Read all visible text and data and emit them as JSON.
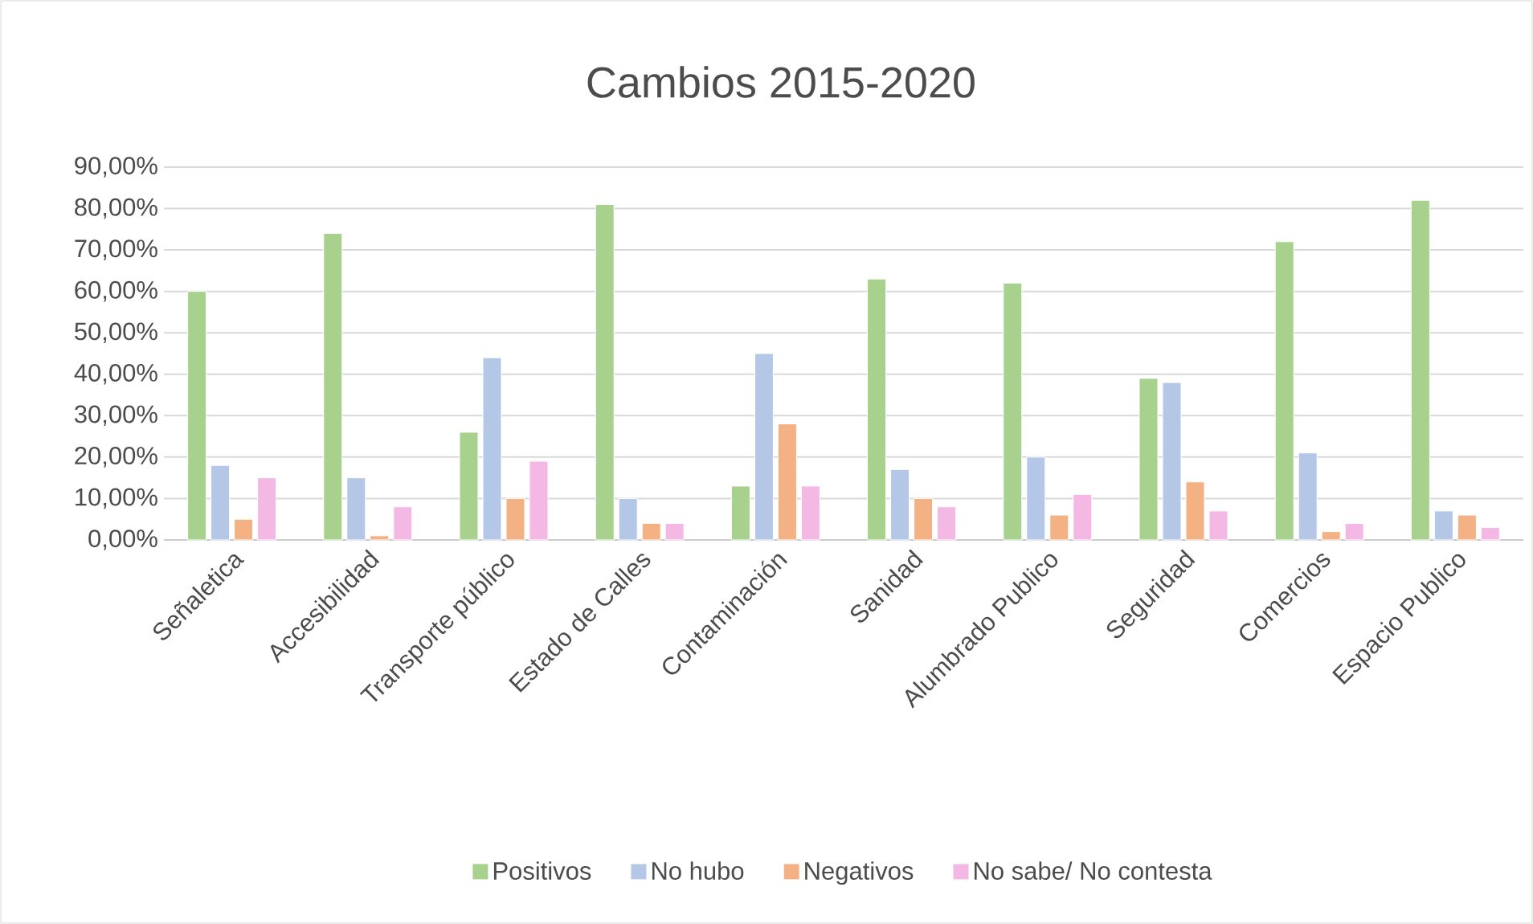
{
  "chart_data": {
    "type": "bar",
    "title": "Cambios 2015-2020",
    "categories": [
      "Señaletica",
      "Accesibilidad",
      "Transporte público",
      "Estado de Calles",
      "Contaminación",
      "Sanidad",
      "Alumbrado Publico",
      "Seguridad",
      "Comercios",
      "Espacio Publico"
    ],
    "series": [
      {
        "name": "Positivos",
        "color": "#a9d18e",
        "values": [
          60,
          74,
          26,
          81,
          13,
          63,
          62,
          39,
          72,
          82
        ]
      },
      {
        "name": "No hubo",
        "color": "#b4c7e7",
        "values": [
          18,
          15,
          44,
          10,
          45,
          17,
          20,
          38,
          21,
          7
        ]
      },
      {
        "name": "Negativos",
        "color": "#f4b183",
        "values": [
          5,
          1,
          10,
          4,
          28,
          10,
          6,
          14,
          2,
          6
        ]
      },
      {
        "name": "No sabe/ No contesta",
        "color": "#f4b8e4",
        "values": [
          15,
          8,
          19,
          4,
          13,
          8,
          11,
          7,
          4,
          3
        ]
      }
    ],
    "ylim": [
      0,
      90
    ],
    "yticks": [
      {
        "value": 0,
        "label": "0,00%"
      },
      {
        "value": 10,
        "label": "10,00%"
      },
      {
        "value": 20,
        "label": "20,00%"
      },
      {
        "value": 30,
        "label": "30,00%"
      },
      {
        "value": 40,
        "label": "40,00%"
      },
      {
        "value": 50,
        "label": "50,00%"
      },
      {
        "value": 60,
        "label": "60,00%"
      },
      {
        "value": 70,
        "label": "70,00%"
      },
      {
        "value": 80,
        "label": "80,00%"
      },
      {
        "value": 90,
        "label": "90,00%"
      }
    ],
    "grid": "y",
    "legend": "bottom"
  }
}
